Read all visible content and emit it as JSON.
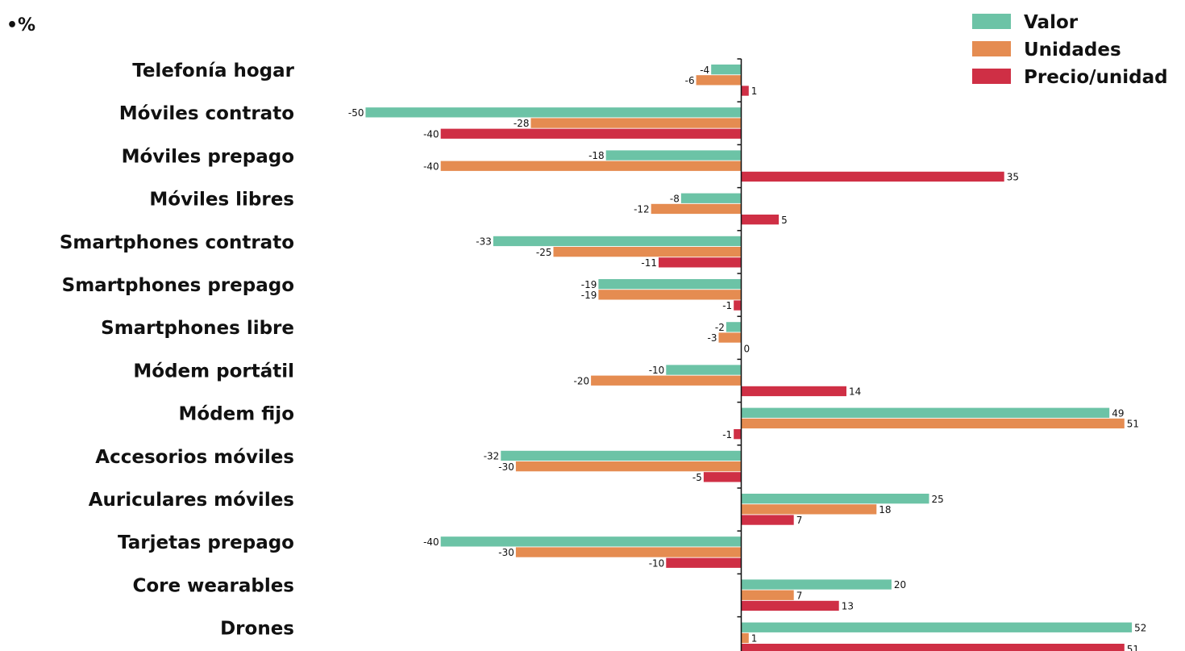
{
  "chart_data": {
    "type": "bar",
    "orientation": "horizontal",
    "unit_label": "•%",
    "categories": [
      "Telefonía hogar",
      "Móviles contrato",
      "Móviles prepago",
      "Móviles libres",
      "Smartphones contrato",
      "Smartphones prepago",
      "Smartphones libre",
      "Módem portátil",
      "Módem fijo",
      "Accesorios móviles",
      "Auriculares móviles",
      "Tarjetas prepago",
      "Core wearables",
      "Drones"
    ],
    "series": [
      {
        "name": "Valor",
        "color": "#6cc3a6",
        "values": [
          -4,
          -50,
          -18,
          -8,
          -33,
          -19,
          -2,
          -10,
          49,
          -32,
          25,
          -40,
          20,
          52
        ]
      },
      {
        "name": "Unidades",
        "color": "#e58c51",
        "values": [
          -6,
          -28,
          -40,
          -12,
          -25,
          -19,
          -3,
          -20,
          51,
          -30,
          18,
          -30,
          7,
          1
        ]
      },
      {
        "name": "Precio/unidad",
        "color": "#cf2f45",
        "values": [
          1,
          -40,
          35,
          5,
          -11,
          -1,
          0,
          14,
          -1,
          -5,
          7,
          -10,
          13,
          51
        ]
      }
    ],
    "legend_position": "top-right",
    "grid": false
  }
}
